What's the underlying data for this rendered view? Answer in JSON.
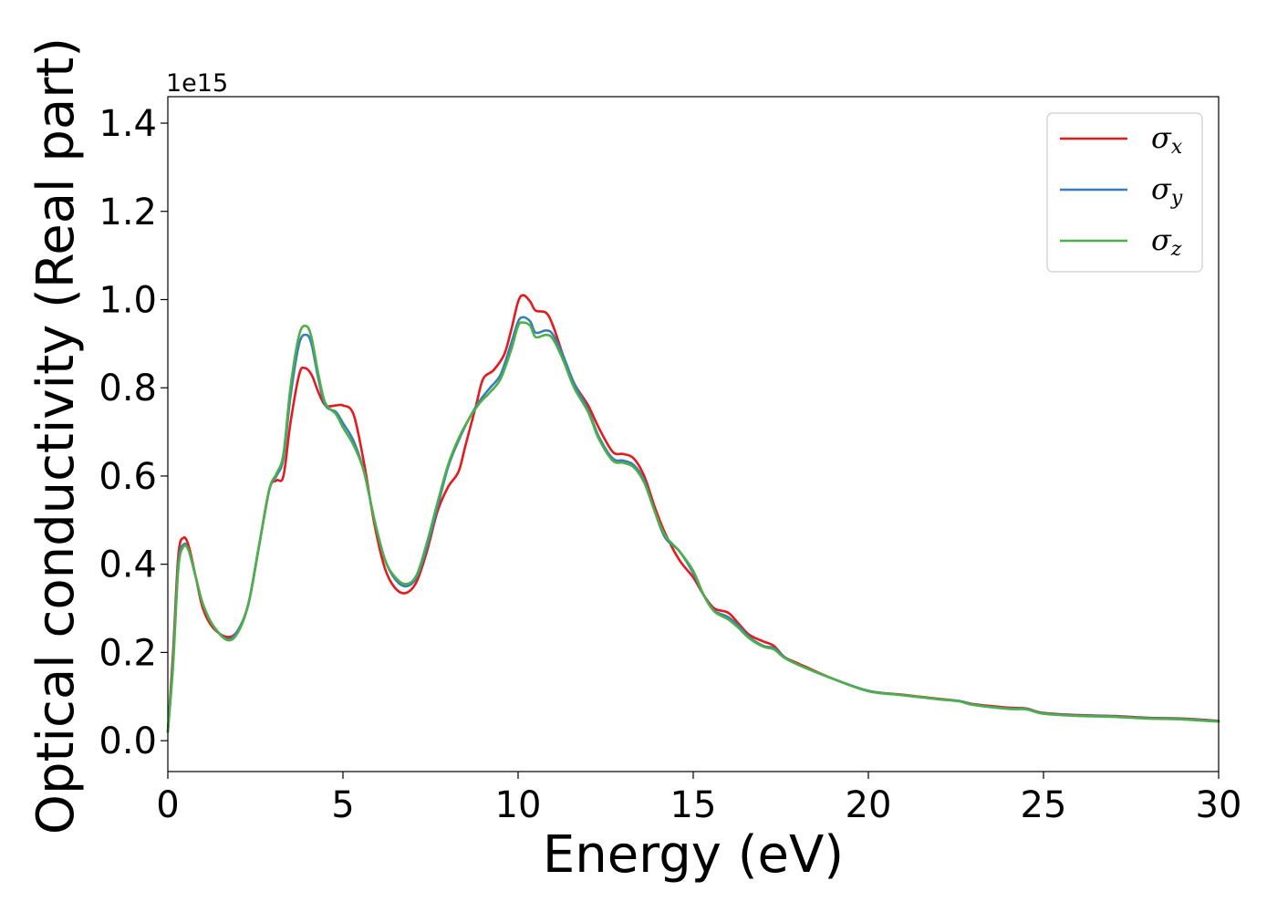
{
  "chart_data": {
    "type": "line",
    "xlabel": "Energy (eV)",
    "ylabel": "Optical conductivity (Real part)",
    "y_offset_text": "1e15",
    "xlim": [
      0,
      30
    ],
    "ylim": [
      -0.07,
      1.46
    ],
    "x_ticks": [
      0,
      5,
      10,
      15,
      20,
      25,
      30
    ],
    "x_tick_labels": [
      "0",
      "5",
      "10",
      "15",
      "20",
      "25",
      "30"
    ],
    "y_ticks": [
      0.0,
      0.2,
      0.4,
      0.6,
      0.8,
      1.0,
      1.2,
      1.4
    ],
    "y_tick_labels": [
      "0.0",
      "0.2",
      "0.4",
      "0.6",
      "0.8",
      "1.0",
      "1.2",
      "1.4"
    ],
    "grid": false,
    "legend_position": "top-right",
    "series": [
      {
        "name": "σx",
        "symbol": "σ",
        "subscript": "x",
        "color": "#e41a1c",
        "points": [
          [
            0,
            0.02
          ],
          [
            0.15,
            0.2
          ],
          [
            0.3,
            0.42
          ],
          [
            0.45,
            0.46
          ],
          [
            0.6,
            0.44
          ],
          [
            0.8,
            0.37
          ],
          [
            1.0,
            0.3
          ],
          [
            1.3,
            0.255
          ],
          [
            1.7,
            0.235
          ],
          [
            2.0,
            0.25
          ],
          [
            2.3,
            0.31
          ],
          [
            2.6,
            0.44
          ],
          [
            2.9,
            0.57
          ],
          [
            3.1,
            0.59
          ],
          [
            3.3,
            0.6
          ],
          [
            3.5,
            0.72
          ],
          [
            3.75,
            0.83
          ],
          [
            3.9,
            0.845
          ],
          [
            4.1,
            0.83
          ],
          [
            4.3,
            0.79
          ],
          [
            4.5,
            0.76
          ],
          [
            4.8,
            0.76
          ],
          [
            5.0,
            0.76
          ],
          [
            5.3,
            0.74
          ],
          [
            5.6,
            0.63
          ],
          [
            5.9,
            0.49
          ],
          [
            6.2,
            0.39
          ],
          [
            6.5,
            0.345
          ],
          [
            6.8,
            0.335
          ],
          [
            7.1,
            0.36
          ],
          [
            7.4,
            0.43
          ],
          [
            7.7,
            0.52
          ],
          [
            8.0,
            0.575
          ],
          [
            8.3,
            0.61
          ],
          [
            8.5,
            0.67
          ],
          [
            8.8,
            0.76
          ],
          [
            9.0,
            0.82
          ],
          [
            9.3,
            0.84
          ],
          [
            9.6,
            0.875
          ],
          [
            9.8,
            0.93
          ],
          [
            10.0,
            0.995
          ],
          [
            10.15,
            1.01
          ],
          [
            10.35,
            0.995
          ],
          [
            10.5,
            0.975
          ],
          [
            10.8,
            0.97
          ],
          [
            11.0,
            0.94
          ],
          [
            11.3,
            0.87
          ],
          [
            11.6,
            0.81
          ],
          [
            12.0,
            0.76
          ],
          [
            12.3,
            0.71
          ],
          [
            12.7,
            0.655
          ],
          [
            13.0,
            0.65
          ],
          [
            13.3,
            0.64
          ],
          [
            13.6,
            0.6
          ],
          [
            13.9,
            0.53
          ],
          [
            14.2,
            0.47
          ],
          [
            14.6,
            0.41
          ],
          [
            15.0,
            0.37
          ],
          [
            15.3,
            0.33
          ],
          [
            15.6,
            0.3
          ],
          [
            16.0,
            0.29
          ],
          [
            16.3,
            0.265
          ],
          [
            16.6,
            0.24
          ],
          [
            17.0,
            0.225
          ],
          [
            17.3,
            0.215
          ],
          [
            17.6,
            0.19
          ],
          [
            18.0,
            0.175
          ],
          [
            19.0,
            0.14
          ],
          [
            20.0,
            0.113
          ],
          [
            21.0,
            0.104
          ],
          [
            22.0,
            0.095
          ],
          [
            22.6,
            0.09
          ],
          [
            23.0,
            0.083
          ],
          [
            24.0,
            0.075
          ],
          [
            24.5,
            0.073
          ],
          [
            25.0,
            0.063
          ],
          [
            26.0,
            0.058
          ],
          [
            27.0,
            0.056
          ],
          [
            28.0,
            0.052
          ],
          [
            29.0,
            0.05
          ],
          [
            30.0,
            0.045
          ]
        ]
      },
      {
        "name": "σy",
        "symbol": "σ",
        "subscript": "y",
        "color": "#377eb8",
        "points": [
          [
            0,
            0.02
          ],
          [
            0.15,
            0.18
          ],
          [
            0.3,
            0.4
          ],
          [
            0.45,
            0.445
          ],
          [
            0.6,
            0.43
          ],
          [
            0.8,
            0.37
          ],
          [
            1.0,
            0.31
          ],
          [
            1.3,
            0.26
          ],
          [
            1.7,
            0.23
          ],
          [
            2.0,
            0.25
          ],
          [
            2.3,
            0.31
          ],
          [
            2.6,
            0.44
          ],
          [
            2.9,
            0.57
          ],
          [
            3.1,
            0.6
          ],
          [
            3.3,
            0.64
          ],
          [
            3.5,
            0.78
          ],
          [
            3.75,
            0.9
          ],
          [
            3.95,
            0.92
          ],
          [
            4.1,
            0.9
          ],
          [
            4.3,
            0.82
          ],
          [
            4.5,
            0.76
          ],
          [
            4.8,
            0.745
          ],
          [
            5.0,
            0.72
          ],
          [
            5.3,
            0.68
          ],
          [
            5.6,
            0.61
          ],
          [
            5.9,
            0.5
          ],
          [
            6.2,
            0.41
          ],
          [
            6.5,
            0.365
          ],
          [
            6.8,
            0.35
          ],
          [
            7.1,
            0.37
          ],
          [
            7.4,
            0.44
          ],
          [
            7.7,
            0.53
          ],
          [
            8.0,
            0.62
          ],
          [
            8.3,
            0.68
          ],
          [
            8.6,
            0.73
          ],
          [
            8.9,
            0.77
          ],
          [
            9.2,
            0.8
          ],
          [
            9.5,
            0.83
          ],
          [
            9.8,
            0.9
          ],
          [
            10.0,
            0.95
          ],
          [
            10.15,
            0.96
          ],
          [
            10.35,
            0.95
          ],
          [
            10.5,
            0.925
          ],
          [
            10.8,
            0.93
          ],
          [
            11.0,
            0.92
          ],
          [
            11.3,
            0.87
          ],
          [
            11.6,
            0.81
          ],
          [
            12.0,
            0.75
          ],
          [
            12.3,
            0.69
          ],
          [
            12.7,
            0.64
          ],
          [
            13.0,
            0.635
          ],
          [
            13.3,
            0.625
          ],
          [
            13.6,
            0.59
          ],
          [
            13.9,
            0.52
          ],
          [
            14.2,
            0.46
          ],
          [
            14.6,
            0.43
          ],
          [
            15.0,
            0.38
          ],
          [
            15.3,
            0.33
          ],
          [
            15.6,
            0.295
          ],
          [
            16.0,
            0.28
          ],
          [
            16.3,
            0.26
          ],
          [
            16.6,
            0.235
          ],
          [
            17.0,
            0.215
          ],
          [
            17.3,
            0.21
          ],
          [
            17.6,
            0.19
          ],
          [
            18.0,
            0.172
          ],
          [
            19.0,
            0.14
          ],
          [
            20.0,
            0.113
          ],
          [
            21.0,
            0.103
          ],
          [
            22.0,
            0.094
          ],
          [
            22.6,
            0.09
          ],
          [
            23.0,
            0.082
          ],
          [
            24.0,
            0.073
          ],
          [
            24.5,
            0.072
          ],
          [
            25.0,
            0.062
          ],
          [
            26.0,
            0.057
          ],
          [
            27.0,
            0.055
          ],
          [
            28.0,
            0.051
          ],
          [
            29.0,
            0.049
          ],
          [
            30.0,
            0.044
          ]
        ]
      },
      {
        "name": "σz",
        "symbol": "σ",
        "subscript": "z",
        "color": "#4daf4a",
        "points": [
          [
            0,
            0.02
          ],
          [
            0.15,
            0.17
          ],
          [
            0.3,
            0.39
          ],
          [
            0.45,
            0.44
          ],
          [
            0.6,
            0.43
          ],
          [
            0.8,
            0.37
          ],
          [
            1.0,
            0.31
          ],
          [
            1.3,
            0.26
          ],
          [
            1.7,
            0.228
          ],
          [
            2.0,
            0.245
          ],
          [
            2.3,
            0.31
          ],
          [
            2.6,
            0.44
          ],
          [
            2.9,
            0.57
          ],
          [
            3.1,
            0.605
          ],
          [
            3.3,
            0.65
          ],
          [
            3.5,
            0.8
          ],
          [
            3.75,
            0.92
          ],
          [
            3.95,
            0.94
          ],
          [
            4.1,
            0.915
          ],
          [
            4.3,
            0.83
          ],
          [
            4.5,
            0.765
          ],
          [
            4.8,
            0.74
          ],
          [
            5.0,
            0.71
          ],
          [
            5.3,
            0.67
          ],
          [
            5.6,
            0.61
          ],
          [
            5.9,
            0.5
          ],
          [
            6.2,
            0.41
          ],
          [
            6.5,
            0.37
          ],
          [
            6.8,
            0.355
          ],
          [
            7.1,
            0.375
          ],
          [
            7.4,
            0.45
          ],
          [
            7.7,
            0.54
          ],
          [
            8.0,
            0.625
          ],
          [
            8.3,
            0.685
          ],
          [
            8.6,
            0.73
          ],
          [
            8.9,
            0.765
          ],
          [
            9.2,
            0.79
          ],
          [
            9.5,
            0.82
          ],
          [
            9.8,
            0.885
          ],
          [
            10.0,
            0.94
          ],
          [
            10.15,
            0.948
          ],
          [
            10.35,
            0.94
          ],
          [
            10.5,
            0.915
          ],
          [
            10.8,
            0.92
          ],
          [
            11.0,
            0.91
          ],
          [
            11.3,
            0.86
          ],
          [
            11.6,
            0.8
          ],
          [
            12.0,
            0.745
          ],
          [
            12.3,
            0.685
          ],
          [
            12.7,
            0.635
          ],
          [
            13.0,
            0.63
          ],
          [
            13.3,
            0.62
          ],
          [
            13.6,
            0.585
          ],
          [
            13.9,
            0.52
          ],
          [
            14.2,
            0.465
          ],
          [
            14.6,
            0.43
          ],
          [
            15.0,
            0.385
          ],
          [
            15.3,
            0.33
          ],
          [
            15.6,
            0.293
          ],
          [
            16.0,
            0.275
          ],
          [
            16.3,
            0.255
          ],
          [
            16.6,
            0.232
          ],
          [
            17.0,
            0.213
          ],
          [
            17.3,
            0.207
          ],
          [
            17.6,
            0.188
          ],
          [
            18.0,
            0.172
          ],
          [
            19.0,
            0.14
          ],
          [
            20.0,
            0.112
          ],
          [
            21.0,
            0.103
          ],
          [
            22.0,
            0.094
          ],
          [
            22.6,
            0.089
          ],
          [
            23.0,
            0.081
          ],
          [
            24.0,
            0.072
          ],
          [
            24.5,
            0.071
          ],
          [
            25.0,
            0.061
          ],
          [
            26.0,
            0.056
          ],
          [
            27.0,
            0.054
          ],
          [
            28.0,
            0.05
          ],
          [
            29.0,
            0.048
          ],
          [
            30.0,
            0.043
          ]
        ]
      }
    ]
  }
}
